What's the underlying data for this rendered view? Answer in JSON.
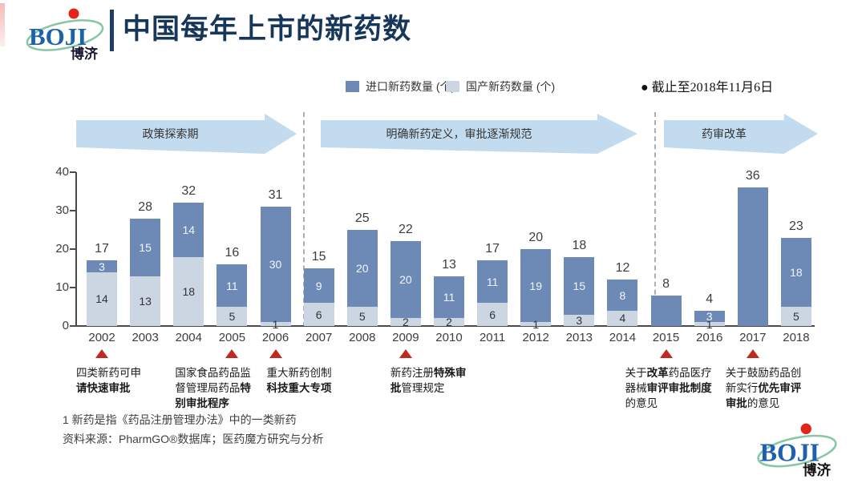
{
  "header": {
    "logo": {
      "text": "BOJI",
      "sub": "博济"
    },
    "title": "中国每年上市的新药数"
  },
  "legend": {
    "items": [
      {
        "label": "进口新药数量 (个)",
        "color": "#6d89b6"
      },
      {
        "label": "国产新药数量 (个)",
        "color": "#ccd6e3"
      }
    ],
    "note": "● 截止至2018年11月6日"
  },
  "phases": [
    {
      "label": "政策探索期"
    },
    {
      "label": "明确新药定义，审批逐渐规范"
    },
    {
      "label": "药审改革"
    }
  ],
  "chart_data": {
    "type": "bar",
    "stacked": true,
    "title": "中国每年上市的新药数",
    "categories": [
      "2002",
      "2003",
      "2004",
      "2005",
      "2006",
      "2007",
      "2008",
      "2009",
      "2010",
      "2011",
      "2012",
      "2013",
      "2014",
      "2015",
      "2016",
      "2017",
      "2018"
    ],
    "series": [
      {
        "name": "国产新药数量 (个)",
        "color": "#ccd6e3",
        "values": [
          14,
          13,
          18,
          5,
          1,
          6,
          5,
          2,
          2,
          6,
          1,
          3,
          4,
          0,
          1,
          0,
          5
        ]
      },
      {
        "name": "进口新药数量 (个)",
        "color": "#6d89b6",
        "values": [
          3,
          15,
          14,
          11,
          30,
          9,
          20,
          20,
          11,
          11,
          19,
          15,
          8,
          8,
          3,
          36,
          18
        ]
      }
    ],
    "totals": [
      17,
      28,
      32,
      16,
      31,
      15,
      25,
      22,
      13,
      17,
      20,
      18,
      12,
      8,
      4,
      36,
      23
    ],
    "ylim": [
      0,
      40
    ],
    "yticks": [
      0,
      10,
      20,
      30,
      40
    ],
    "grid": false,
    "legend_position": "top",
    "separators_after": [
      "2006",
      "2014"
    ]
  },
  "events": [
    {
      "year": "2002",
      "dx": -32,
      "lines": [
        [
          {
            "t": "四类新药可申",
            "b": false
          }
        ],
        [
          {
            "t": "请快速审批",
            "b": true
          }
        ]
      ]
    },
    {
      "year": "2005",
      "dx": -71,
      "lines": [
        [
          {
            "t": "国家食品药品监",
            "b": false
          }
        ],
        [
          {
            "t": "督管理局药品",
            "b": false
          },
          {
            "t": "特",
            "b": true
          }
        ],
        [
          {
            "t": "别审批程序",
            "b": true
          }
        ]
      ]
    },
    {
      "year": "2006",
      "dx": -11,
      "lines": [
        [
          {
            "t": "重大新药创制",
            "b": false
          }
        ],
        [
          {
            "t": "科技重大专项",
            "b": true
          }
        ]
      ]
    },
    {
      "year": "2009",
      "dx": -19,
      "lines": [
        [
          {
            "t": "新药注册",
            "b": false
          },
          {
            "t": "特殊审",
            "b": true
          }
        ],
        [
          {
            "t": "批",
            "b": true
          },
          {
            "t": "管理规定",
            "b": false
          }
        ]
      ]
    },
    {
      "year": "2015",
      "dx": -51,
      "lines": [
        [
          {
            "t": "关于",
            "b": false
          },
          {
            "t": "改革",
            "b": true
          },
          {
            "t": "药品医疗",
            "b": false
          }
        ],
        [
          {
            "t": "器械",
            "b": false
          },
          {
            "t": "审评审批制度",
            "b": true
          }
        ],
        [
          {
            "t": "的意见",
            "b": false
          }
        ]
      ]
    },
    {
      "year": "2017",
      "dx": -34,
      "lines": [
        [
          {
            "t": "关于鼓励药品创",
            "b": false
          }
        ],
        [
          {
            "t": "新实行",
            "b": false
          },
          {
            "t": "优先审评",
            "b": true
          }
        ],
        [
          {
            "t": "审批",
            "b": true
          },
          {
            "t": "的意见",
            "b": false
          }
        ]
      ]
    }
  ],
  "footnotes": {
    "line1": "1 新药是指《药品注册管理办法》中的一类新药",
    "line2": "资料来源：PharmGO®数据库；医药魔方研究与分析"
  },
  "footer_logo": {
    "text": "BOJI",
    "sub": "博济"
  }
}
